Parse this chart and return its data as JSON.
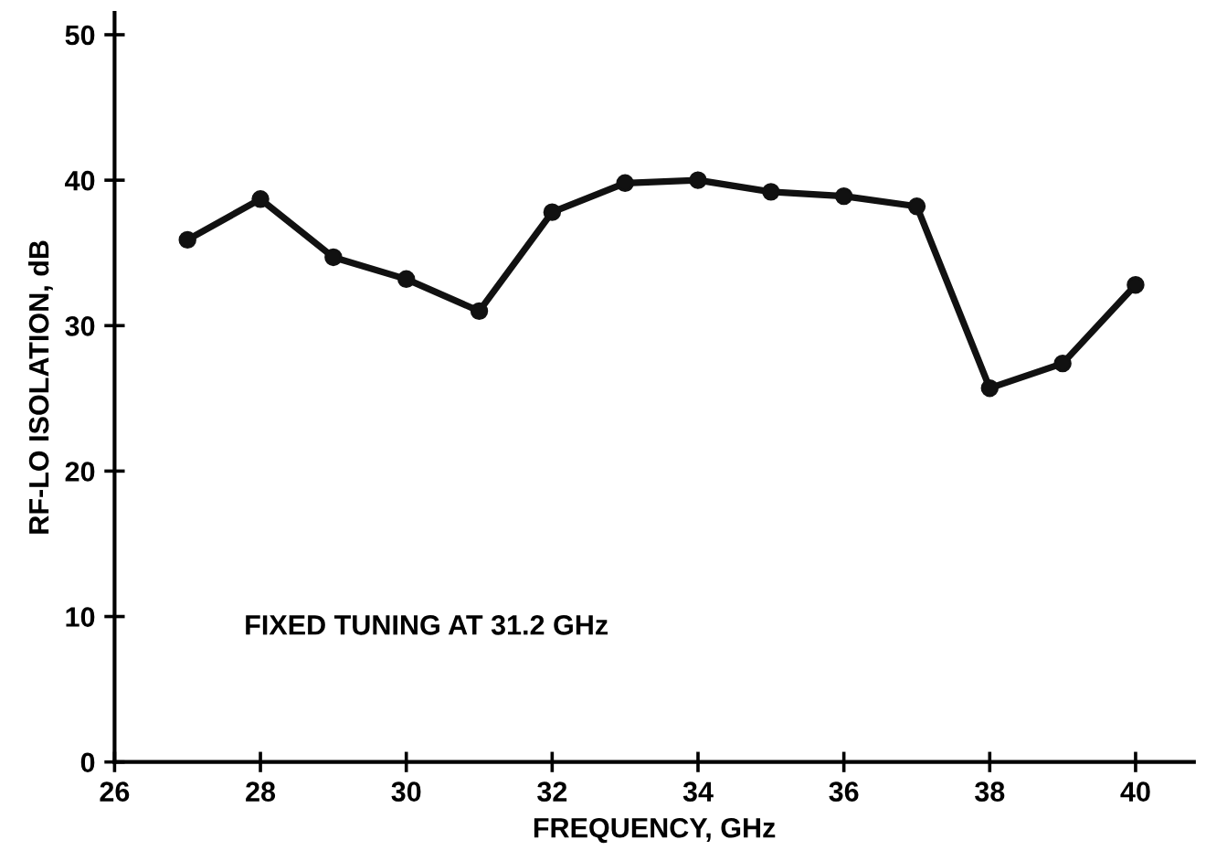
{
  "chart_data": {
    "type": "line",
    "xlabel": "FREQUENCY, GHz",
    "ylabel": "RF-LO ISOLATION, dB",
    "x": [
      27,
      28,
      29,
      30,
      31,
      32,
      33,
      34,
      35,
      36,
      37,
      38,
      39,
      40
    ],
    "series": [
      {
        "color": "#111111",
        "values": [
          35.9,
          38.7,
          34.7,
          33.2,
          31.0,
          37.8,
          39.8,
          40.0,
          39.2,
          38.9,
          38.2,
          25.7,
          27.4,
          32.8
        ]
      }
    ],
    "marker": "circle",
    "line_style": "solid",
    "xlim": [
      26,
      40.8
    ],
    "ylim": [
      0,
      51.5
    ],
    "xticks": [
      26,
      28,
      30,
      32,
      34,
      36,
      38,
      40
    ],
    "yticks": [
      0,
      10,
      20,
      30,
      40,
      50
    ],
    "grid": false,
    "legend": false,
    "annotations": [
      {
        "text": "FIXED TUNING AT 31.2 GHz"
      }
    ]
  }
}
